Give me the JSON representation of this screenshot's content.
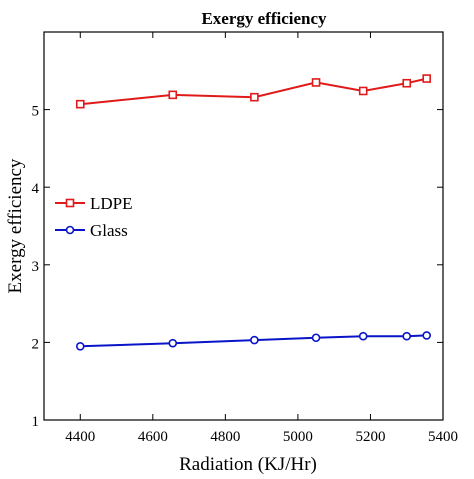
{
  "chart_data": {
    "type": "line",
    "title": "Exergy efficiency",
    "xlabel": "Radiation (KJ/Hr)",
    "ylabel": "Exergy efficiency",
    "xlim": [
      4300,
      5400
    ],
    "ylim": [
      1,
      6
    ],
    "xticks": [
      4400,
      4600,
      4800,
      5000,
      5200,
      5400
    ],
    "xtick_labels": [
      "4400",
      "4600",
      "4800",
      "5000",
      "5200",
      "5400"
    ],
    "yticks": [
      1,
      2,
      3,
      4,
      5
    ],
    "ytick_labels": [
      "1",
      "2",
      "3",
      "4",
      "5"
    ],
    "grid": false,
    "legend_position": "left-middle",
    "series": [
      {
        "name": "LDPE",
        "color": "#e01a1a",
        "marker": "square",
        "x": [
          4400,
          4655,
          4880,
          5050,
          5180,
          5300,
          5355
        ],
        "y": [
          5.07,
          5.19,
          5.16,
          5.35,
          5.24,
          5.34,
          5.4
        ]
      },
      {
        "name": "Glass",
        "color": "#0a14c8",
        "marker": "circle",
        "x": [
          4400,
          4655,
          4880,
          5050,
          5180,
          5300,
          5355
        ],
        "y": [
          1.95,
          1.99,
          2.03,
          2.06,
          2.08,
          2.08,
          2.09
        ]
      }
    ]
  }
}
